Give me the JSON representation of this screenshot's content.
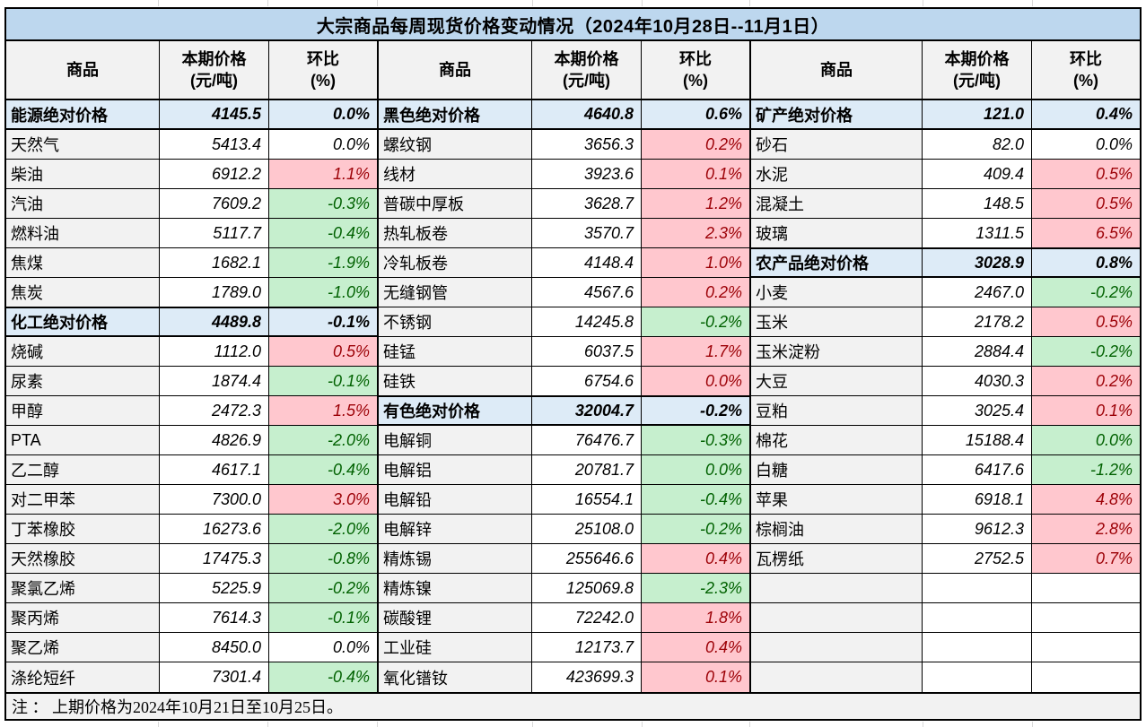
{
  "title": "大宗商品每周现货价格变动情况（2024年10月28日--11月1日）",
  "note": "注 ： 上期价格为2024年10月21日至10月25日。",
  "column_headers": {
    "commodity": "商品",
    "price_line1": "本期价格",
    "price_line2": "(元/吨)",
    "pct_line1": "环比",
    "pct_line2": "(%)"
  },
  "colors": {
    "title_bg": "#BDD7EE",
    "label_bg": "#F2F2F2",
    "subtotal_bg": "#DDEBF7",
    "increase_bg": "#FFC7CE",
    "increase_text": "#9C0006",
    "decrease_bg": "#C6EFCE",
    "decrease_text": "#006100"
  },
  "groups": [
    {
      "rows": [
        {
          "name": "能源绝对价格",
          "price": "4145.5",
          "pct": "0.0%",
          "style": "subtotal"
        },
        {
          "name": "天然气",
          "price": "5413.4",
          "pct": "0.0%",
          "style": "flat"
        },
        {
          "name": "柴油",
          "price": "6912.2",
          "pct": "1.1%",
          "style": "up"
        },
        {
          "name": "汽油",
          "price": "7609.2",
          "pct": "-0.3%",
          "style": "down"
        },
        {
          "name": "燃料油",
          "price": "5117.7",
          "pct": "-0.4%",
          "style": "down"
        },
        {
          "name": "焦煤",
          "price": "1682.1",
          "pct": "-1.9%",
          "style": "down"
        },
        {
          "name": "焦炭",
          "price": "1789.0",
          "pct": "-1.0%",
          "style": "down"
        },
        {
          "name": "化工绝对价格",
          "price": "4489.8",
          "pct": "-0.1%",
          "style": "subtotal"
        },
        {
          "name": "烧碱",
          "price": "1112.0",
          "pct": "0.5%",
          "style": "up"
        },
        {
          "name": "尿素",
          "price": "1874.4",
          "pct": "-0.1%",
          "style": "down"
        },
        {
          "name": "甲醇",
          "price": "2472.3",
          "pct": "1.5%",
          "style": "up"
        },
        {
          "name": "PTA",
          "price": "4826.9",
          "pct": "-2.0%",
          "style": "down"
        },
        {
          "name": "乙二醇",
          "price": "4617.1",
          "pct": "-0.4%",
          "style": "down"
        },
        {
          "name": "对二甲苯",
          "price": "7300.0",
          "pct": "3.0%",
          "style": "up"
        },
        {
          "name": "丁苯橡胶",
          "price": "16273.6",
          "pct": "-2.0%",
          "style": "down"
        },
        {
          "name": "天然橡胶",
          "price": "17475.3",
          "pct": "-0.8%",
          "style": "down"
        },
        {
          "name": "聚氯乙烯",
          "price": "5225.9",
          "pct": "-0.2%",
          "style": "down"
        },
        {
          "name": "聚丙烯",
          "price": "7614.3",
          "pct": "-0.1%",
          "style": "down"
        },
        {
          "name": "聚乙烯",
          "price": "8450.0",
          "pct": "0.0%",
          "style": "flat"
        },
        {
          "name": "涤纶短纤",
          "price": "7301.4",
          "pct": "-0.4%",
          "style": "down"
        }
      ]
    },
    {
      "rows": [
        {
          "name": "黑色绝对价格",
          "price": "4640.8",
          "pct": "0.6%",
          "style": "subtotal"
        },
        {
          "name": "螺纹钢",
          "price": "3656.3",
          "pct": "0.2%",
          "style": "up"
        },
        {
          "name": "线材",
          "price": "3923.6",
          "pct": "0.1%",
          "style": "up"
        },
        {
          "name": "普碳中厚板",
          "price": "3628.7",
          "pct": "1.2%",
          "style": "up"
        },
        {
          "name": "热轧板卷",
          "price": "3570.7",
          "pct": "2.3%",
          "style": "up"
        },
        {
          "name": "冷轧板卷",
          "price": "4148.4",
          "pct": "1.0%",
          "style": "up"
        },
        {
          "name": "无缝钢管",
          "price": "4567.6",
          "pct": "0.2%",
          "style": "up"
        },
        {
          "name": "不锈钢",
          "price": "14245.8",
          "pct": "-0.2%",
          "style": "down"
        },
        {
          "name": "硅锰",
          "price": "6037.5",
          "pct": "1.7%",
          "style": "up"
        },
        {
          "name": "硅铁",
          "price": "6754.6",
          "pct": "0.0%",
          "style": "up"
        },
        {
          "name": "有色绝对价格",
          "price": "32004.7",
          "pct": "-0.2%",
          "style": "subtotal"
        },
        {
          "name": "电解铜",
          "price": "76476.7",
          "pct": "-0.3%",
          "style": "down"
        },
        {
          "name": "电解铝",
          "price": "20781.7",
          "pct": "0.0%",
          "style": "down"
        },
        {
          "name": "电解铅",
          "price": "16554.1",
          "pct": "-0.4%",
          "style": "down"
        },
        {
          "name": "电解锌",
          "price": "25108.0",
          "pct": "-0.2%",
          "style": "down"
        },
        {
          "name": "精炼锡",
          "price": "255646.6",
          "pct": "0.4%",
          "style": "up"
        },
        {
          "name": "精炼镍",
          "price": "125069.8",
          "pct": "-2.3%",
          "style": "down"
        },
        {
          "name": "碳酸锂",
          "price": "72242.0",
          "pct": "1.8%",
          "style": "up"
        },
        {
          "name": "工业硅",
          "price": "12173.7",
          "pct": "0.4%",
          "style": "up"
        },
        {
          "name": "氧化镨钕",
          "price": "423699.3",
          "pct": "0.1%",
          "style": "up"
        }
      ]
    },
    {
      "rows": [
        {
          "name": "矿产绝对价格",
          "price": "121.0",
          "pct": "0.4%",
          "style": "subtotal"
        },
        {
          "name": "砂石",
          "price": "82.0",
          "pct": "0.0%",
          "style": "flat"
        },
        {
          "name": "水泥",
          "price": "409.4",
          "pct": "0.5%",
          "style": "up"
        },
        {
          "name": "混凝土",
          "price": "148.5",
          "pct": "0.5%",
          "style": "up"
        },
        {
          "name": "玻璃",
          "price": "1311.5",
          "pct": "6.5%",
          "style": "up"
        },
        {
          "name": "农产品绝对价格",
          "price": "3028.9",
          "pct": "0.8%",
          "style": "subtotal"
        },
        {
          "name": "小麦",
          "price": "2467.0",
          "pct": "-0.2%",
          "style": "down"
        },
        {
          "name": "玉米",
          "price": "2178.2",
          "pct": "0.5%",
          "style": "up"
        },
        {
          "name": "玉米淀粉",
          "price": "2884.4",
          "pct": "-0.2%",
          "style": "down"
        },
        {
          "name": "大豆",
          "price": "4030.3",
          "pct": "0.2%",
          "style": "up"
        },
        {
          "name": "豆粕",
          "price": "3025.4",
          "pct": "0.1%",
          "style": "up"
        },
        {
          "name": "棉花",
          "price": "15188.4",
          "pct": "0.0%",
          "style": "down"
        },
        {
          "name": "白糖",
          "price": "6417.6",
          "pct": "-1.2%",
          "style": "down"
        },
        {
          "name": "苹果",
          "price": "6918.1",
          "pct": "4.8%",
          "style": "up"
        },
        {
          "name": "棕榈油",
          "price": "9612.3",
          "pct": "2.8%",
          "style": "up"
        },
        {
          "name": "瓦楞纸",
          "price": "2752.5",
          "pct": "0.7%",
          "style": "up"
        },
        {
          "name": "",
          "price": "",
          "pct": "",
          "style": "empty"
        },
        {
          "name": "",
          "price": "",
          "pct": "",
          "style": "empty"
        },
        {
          "name": "",
          "price": "",
          "pct": "",
          "style": "empty"
        },
        {
          "name": "",
          "price": "",
          "pct": "",
          "style": "empty"
        }
      ]
    }
  ]
}
